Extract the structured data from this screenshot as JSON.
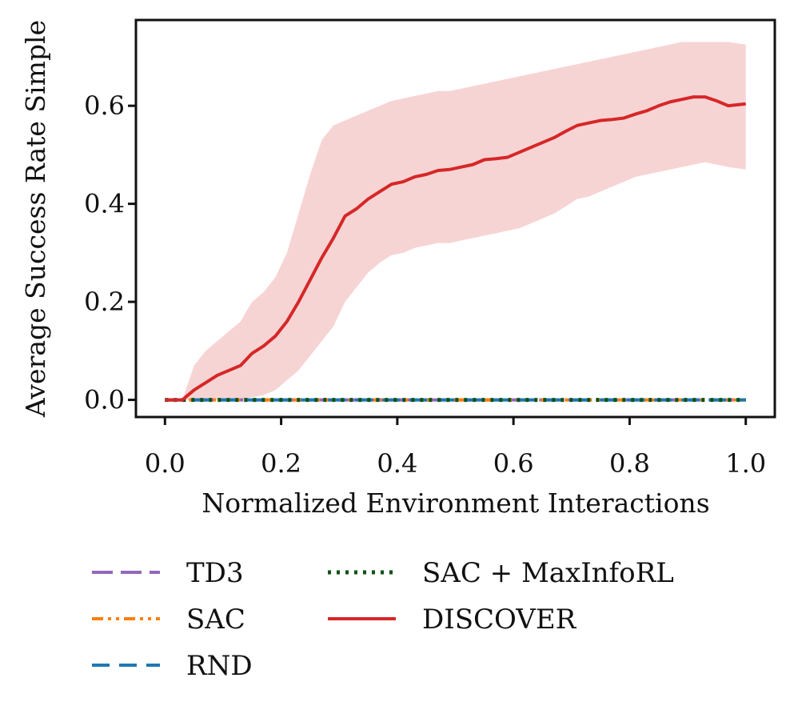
{
  "chart_data": {
    "type": "line",
    "title": "",
    "xlabel": "Normalized Environment Interactions",
    "ylabel": "Average Success Rate Simple",
    "xlim": [
      -0.05,
      1.05
    ],
    "ylim": [
      -0.035,
      0.775
    ],
    "xticks": [
      0.0,
      0.2,
      0.4,
      0.6,
      0.8,
      1.0
    ],
    "xtick_labels": [
      "0.0",
      "0.2",
      "0.4",
      "0.6",
      "0.8",
      "1.0"
    ],
    "yticks": [
      0.0,
      0.2,
      0.4,
      0.6
    ],
    "ytick_labels": [
      "0.0",
      "0.2",
      "0.4",
      "0.6"
    ],
    "grid": false,
    "legend_position": "bottom",
    "x": [
      0.0,
      0.02,
      0.03,
      0.05,
      0.07,
      0.09,
      0.11,
      0.13,
      0.15,
      0.17,
      0.19,
      0.21,
      0.23,
      0.25,
      0.27,
      0.29,
      0.31,
      0.33,
      0.35,
      0.37,
      0.39,
      0.41,
      0.43,
      0.45,
      0.47,
      0.49,
      0.51,
      0.53,
      0.55,
      0.57,
      0.59,
      0.61,
      0.63,
      0.65,
      0.67,
      0.69,
      0.71,
      0.73,
      0.75,
      0.77,
      0.79,
      0.81,
      0.83,
      0.85,
      0.87,
      0.89,
      0.91,
      0.93,
      0.95,
      0.97,
      1.0
    ],
    "series": [
      {
        "name": "TD3",
        "color": "#9467bd",
        "dash": "long-dash",
        "values": [
          0,
          0,
          0,
          0,
          0,
          0,
          0,
          0,
          0,
          0,
          0,
          0,
          0,
          0,
          0,
          0,
          0,
          0,
          0,
          0,
          0,
          0,
          0,
          0,
          0,
          0,
          0,
          0,
          0,
          0,
          0,
          0,
          0,
          0,
          0,
          0,
          0,
          0,
          0,
          0,
          0,
          0,
          0,
          0,
          0,
          0,
          0,
          0,
          0,
          0,
          0
        ]
      },
      {
        "name": "SAC",
        "color": "#ff7f0e",
        "dash": "dash-dot-dot",
        "values": [
          0,
          0,
          0,
          0,
          0,
          0,
          0,
          0,
          0,
          0,
          0,
          0,
          0,
          0,
          0,
          0,
          0,
          0,
          0,
          0,
          0,
          0,
          0,
          0,
          0,
          0,
          0,
          0,
          0,
          0,
          0,
          0,
          0,
          0,
          0,
          0,
          0,
          0,
          0,
          0,
          0,
          0,
          0,
          0,
          0,
          0,
          0,
          0,
          0,
          0,
          0
        ]
      },
      {
        "name": "RND",
        "color": "#1f77b4",
        "dash": "dash",
        "values": [
          0,
          0,
          0,
          0,
          0,
          0,
          0,
          0,
          0,
          0,
          0,
          0,
          0,
          0,
          0,
          0,
          0,
          0,
          0,
          0,
          0,
          0,
          0,
          0,
          0,
          0,
          0,
          0,
          0,
          0,
          0,
          0,
          0,
          0,
          0,
          0,
          0,
          0,
          0,
          0,
          0,
          0,
          0,
          0,
          0,
          0,
          0,
          0,
          0,
          0,
          0
        ]
      },
      {
        "name": "SAC + MaxInfoRL",
        "color": "#0b5314",
        "dash": "dotted",
        "values": [
          0,
          0,
          0,
          0,
          0,
          0,
          0,
          0,
          0,
          0,
          0,
          0,
          0,
          0,
          0,
          0,
          0,
          0,
          0,
          0,
          0,
          0,
          0,
          0,
          0,
          0,
          0,
          0,
          0,
          0,
          0,
          0,
          0,
          0,
          0,
          0,
          0,
          0,
          0,
          0,
          0,
          0,
          0,
          0,
          0,
          0,
          0,
          0,
          0,
          0,
          0
        ]
      },
      {
        "name": "DISCOVER",
        "color": "#d62728",
        "dash": "solid",
        "values": [
          0.0,
          0.0,
          0.0,
          0.02,
          0.035,
          0.05,
          0.06,
          0.07,
          0.095,
          0.11,
          0.13,
          0.16,
          0.2,
          0.245,
          0.29,
          0.33,
          0.375,
          0.39,
          0.41,
          0.425,
          0.44,
          0.445,
          0.455,
          0.46,
          0.468,
          0.47,
          0.475,
          0.48,
          0.49,
          0.492,
          0.495,
          0.505,
          0.515,
          0.525,
          0.535,
          0.548,
          0.56,
          0.565,
          0.57,
          0.572,
          0.575,
          0.583,
          0.59,
          0.6,
          0.608,
          0.613,
          0.618,
          0.618,
          0.61,
          0.6,
          0.604
        ],
        "band_upper": [
          0.0,
          0.0,
          0.0,
          0.07,
          0.1,
          0.12,
          0.14,
          0.16,
          0.2,
          0.22,
          0.25,
          0.3,
          0.38,
          0.46,
          0.53,
          0.56,
          0.57,
          0.58,
          0.59,
          0.6,
          0.61,
          0.615,
          0.62,
          0.625,
          0.63,
          0.63,
          0.635,
          0.64,
          0.645,
          0.65,
          0.655,
          0.66,
          0.665,
          0.67,
          0.675,
          0.68,
          0.685,
          0.69,
          0.695,
          0.7,
          0.705,
          0.71,
          0.715,
          0.72,
          0.725,
          0.73,
          0.73,
          0.73,
          0.73,
          0.73,
          0.725
        ],
        "band_lower": [
          0.0,
          0.0,
          0.0,
          0.0,
          0.0,
          0.0,
          0.0,
          0.0,
          0.005,
          0.01,
          0.02,
          0.04,
          0.06,
          0.09,
          0.12,
          0.15,
          0.2,
          0.23,
          0.26,
          0.28,
          0.295,
          0.3,
          0.31,
          0.315,
          0.32,
          0.32,
          0.325,
          0.33,
          0.335,
          0.34,
          0.345,
          0.35,
          0.36,
          0.37,
          0.38,
          0.395,
          0.41,
          0.415,
          0.425,
          0.435,
          0.445,
          0.455,
          0.46,
          0.465,
          0.47,
          0.475,
          0.48,
          0.485,
          0.48,
          0.475,
          0.47
        ]
      }
    ]
  }
}
